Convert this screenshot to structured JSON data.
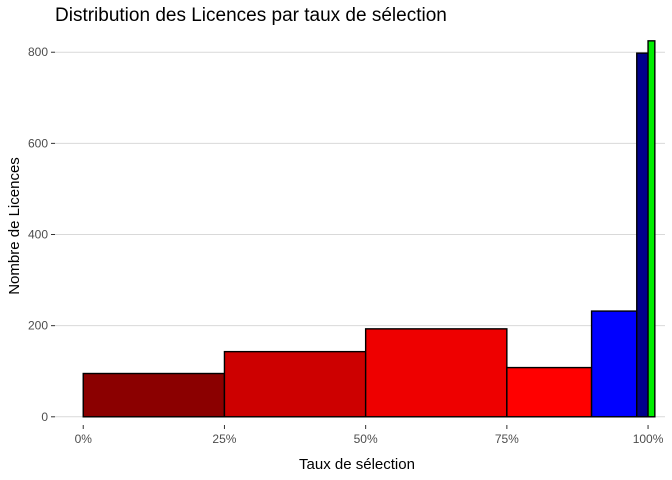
{
  "chart_data": {
    "type": "bar",
    "title": "Distribution des Licences par taux de sélection",
    "xlabel": "Taux de sélection",
    "ylabel": "Nombre de Licences",
    "xlim": [
      -0.05,
      1.03
    ],
    "ylim": [
      -18,
      840
    ],
    "x_ticks": [
      {
        "value": 0,
        "label": "0%"
      },
      {
        "value": 0.25,
        "label": "25%"
      },
      {
        "value": 0.5,
        "label": "50%"
      },
      {
        "value": 0.75,
        "label": "75%"
      },
      {
        "value": 1,
        "label": "100%"
      }
    ],
    "y_ticks": [
      {
        "value": 0,
        "label": "0"
      },
      {
        "value": 200,
        "label": "200"
      },
      {
        "value": 400,
        "label": "400"
      },
      {
        "value": 600,
        "label": "600"
      },
      {
        "value": 800,
        "label": "800"
      }
    ],
    "grid": true,
    "bins": [
      {
        "from": 0.0,
        "to": 0.25,
        "value": 95,
        "color": "#8B0000"
      },
      {
        "from": 0.25,
        "to": 0.5,
        "value": 143,
        "color": "#CD0000"
      },
      {
        "from": 0.5,
        "to": 0.75,
        "value": 193,
        "color": "#EE0000"
      },
      {
        "from": 0.75,
        "to": 0.9,
        "value": 108,
        "color": "#FF0000"
      },
      {
        "from": 0.9,
        "to": 0.98,
        "value": 232,
        "color": "#0000FF"
      },
      {
        "from": 0.98,
        "to": 1.0,
        "value": 798,
        "color": "#00008B"
      },
      {
        "from": 1.0,
        "to": 1.012,
        "value": 825,
        "color": "#00EE00"
      }
    ]
  }
}
